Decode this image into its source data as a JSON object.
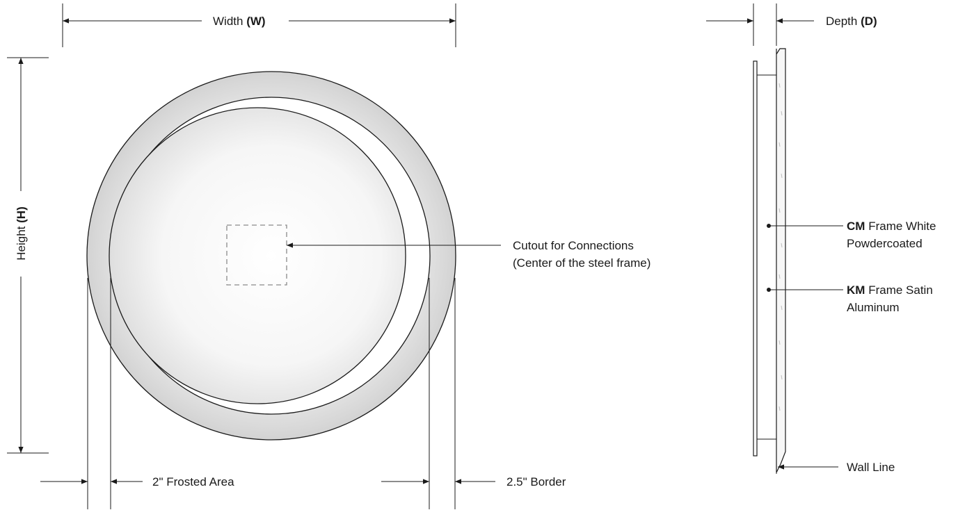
{
  "dimensions": {
    "width_label": "Width",
    "width_symbol": "(W)",
    "height_label": "Height",
    "height_symbol": "(H)",
    "depth_label": "Depth",
    "depth_symbol": "(D)",
    "frosted_label": "2\" Frosted Area",
    "border_label": "2.5\" Border"
  },
  "callouts": {
    "cutout_line1": "Cutout for Connections",
    "cutout_line2": "(Center of the steel frame)",
    "wall_line": "Wall Line"
  },
  "frames": {
    "cm_code": "CM",
    "cm_line1": "Frame White",
    "cm_line2": "Powdercoated",
    "km_code": "KM",
    "km_line1": "Frame Satin",
    "km_line2": "Aluminum"
  },
  "colors": {
    "line": "#1a1a1a",
    "border_gradient_inner": "#ffffff",
    "border_gradient_outer": "#c9c9c9",
    "cutout_dash": "#8a8a8a"
  }
}
